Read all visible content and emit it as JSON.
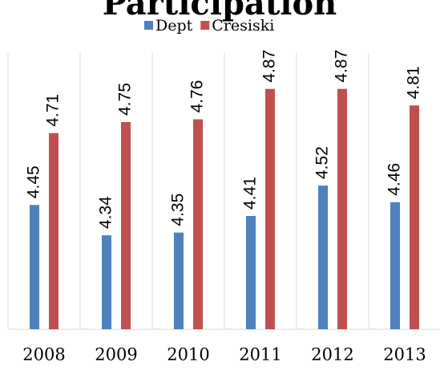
{
  "chart_data": {
    "type": "bar",
    "title": "Participation",
    "categories": [
      "2008",
      "2009",
      "2010",
      "2011",
      "2012",
      "2013"
    ],
    "series": [
      {
        "name": "Dept",
        "color": "#4f81bd",
        "values": [
          4.45,
          4.34,
          4.35,
          4.41,
          4.52,
          4.46
        ]
      },
      {
        "name": "Cresiski",
        "color": "#c0504d",
        "values": [
          4.71,
          4.75,
          4.76,
          4.87,
          4.87,
          4.81
        ]
      }
    ],
    "ylim": [
      4,
      5
    ],
    "legend": "top"
  }
}
